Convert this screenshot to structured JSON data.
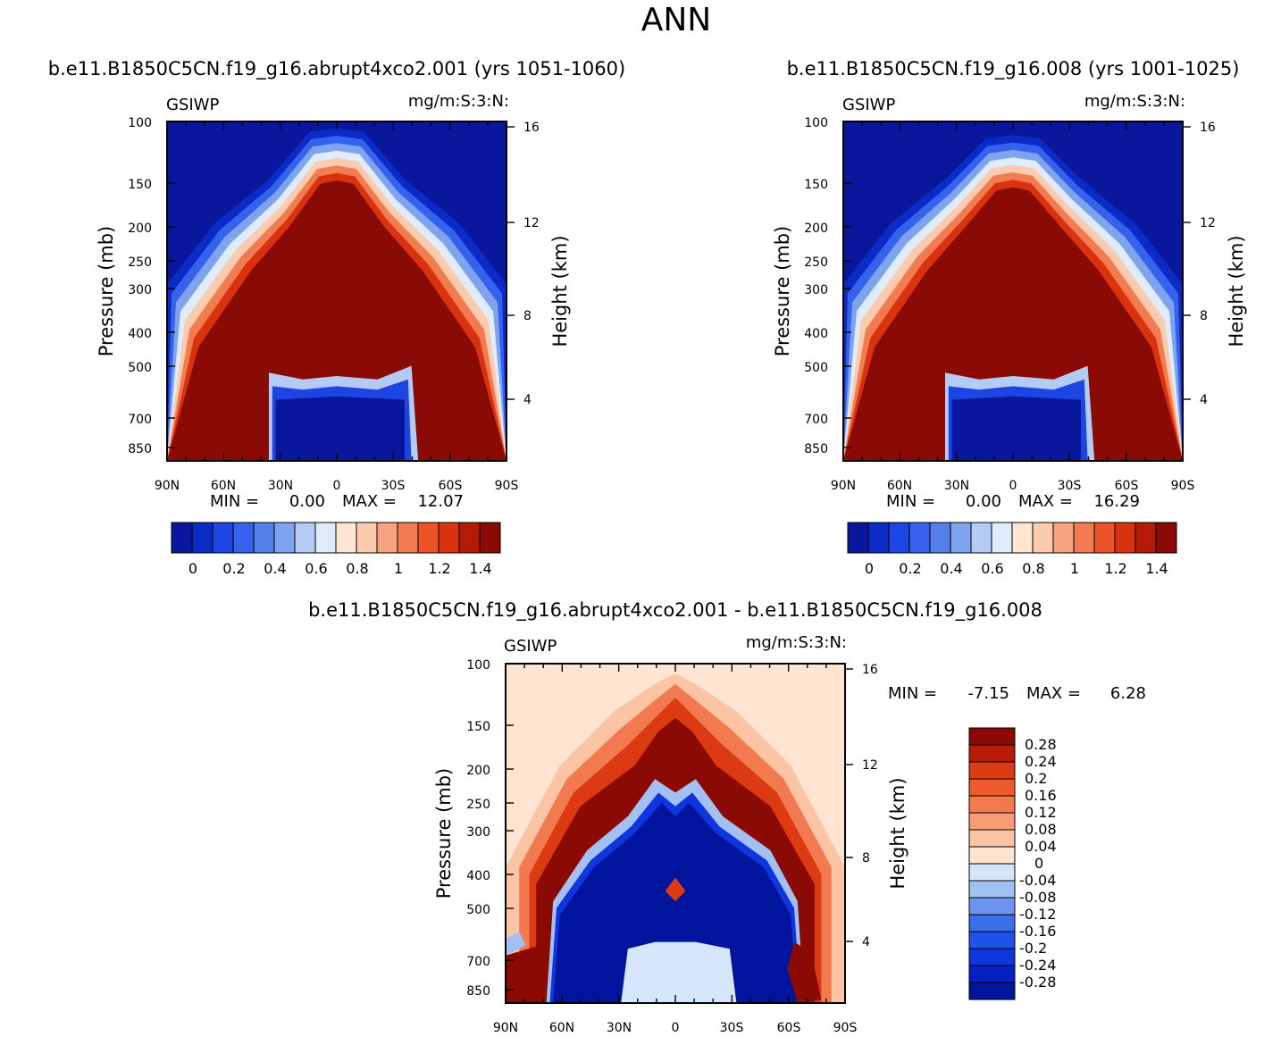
{
  "figure_title": "ANN",
  "colors": {
    "seq": [
      "#08179b",
      "#0a2bc6",
      "#1d45e3",
      "#3561ec",
      "#527fe8",
      "#7ea3ef",
      "#b4cbf5",
      "#e0ecfb",
      "#ffe6d3",
      "#fbcbad",
      "#f6a37e",
      "#f27b51",
      "#ec5326",
      "#d9320f",
      "#b31b07",
      "#8a0a05"
    ],
    "diff": [
      "#00149e",
      "#0521c2",
      "#0f36de",
      "#2051ea",
      "#3d6ee9",
      "#6d93ef",
      "#a3c0f4",
      "#d6e6fa",
      "#fee4d1",
      "#fbc4a5",
      "#f69d78",
      "#f27a4e",
      "#ed5a2b",
      "#dc3a12",
      "#b71c07",
      "#8b0a04"
    ]
  },
  "chart_data": [
    {
      "type": "contour",
      "subtitle": "b.e11.B1850C5CN.f19_g16.abrupt4xco2.001 (yrs 1051-1060)",
      "variable": "GSIWP",
      "units": "mg/m:S:3:N:",
      "ylabel": "Pressure (mb)",
      "ylabel_right": "Height (km)",
      "xticks": [
        "90N",
        "60N",
        "30N",
        "0",
        "30S",
        "60S",
        "90S"
      ],
      "yticks": [
        "100",
        "150",
        "200",
        "250",
        "300",
        "400",
        "500",
        "700",
        "850"
      ],
      "yticks_right": [
        "16",
        "12",
        "8",
        "4"
      ],
      "stats": {
        "min_label": "MIN =",
        "min": "0.00",
        "max_label": "MAX =",
        "max": "12.07"
      },
      "colorbar_labels": [
        "0",
        "0.2",
        "0.4",
        "0.6",
        "0.8",
        "1",
        "1.2",
        "1.4"
      ],
      "colorbar_levels": [
        0,
        0.1,
        0.2,
        0.3,
        0.4,
        0.5,
        0.6,
        0.7,
        0.8,
        0.9,
        1.0,
        1.1,
        1.2,
        1.3,
        1.4
      ],
      "ylim": [
        100,
        1000
      ],
      "xlim": [
        90,
        -90
      ]
    },
    {
      "type": "contour",
      "subtitle": "b.e11.B1850C5CN.f19_g16.008 (yrs 1001-1025)",
      "variable": "GSIWP",
      "units": "mg/m:S:3:N:",
      "ylabel": "Pressure (mb)",
      "ylabel_right": "Height (km)",
      "xticks": [
        "90N",
        "60N",
        "30N",
        "0",
        "30S",
        "60S",
        "90S"
      ],
      "yticks": [
        "100",
        "150",
        "200",
        "250",
        "300",
        "400",
        "500",
        "700",
        "850"
      ],
      "yticks_right": [
        "16",
        "12",
        "8",
        "4"
      ],
      "stats": {
        "min_label": "MIN =",
        "min": "0.00",
        "max_label": "MAX =",
        "max": "16.29"
      },
      "colorbar_labels": [
        "0",
        "0.2",
        "0.4",
        "0.6",
        "0.8",
        "1",
        "1.2",
        "1.4"
      ],
      "colorbar_levels": [
        0,
        0.1,
        0.2,
        0.3,
        0.4,
        0.5,
        0.6,
        0.7,
        0.8,
        0.9,
        1.0,
        1.1,
        1.2,
        1.3,
        1.4
      ],
      "ylim": [
        100,
        1000
      ],
      "xlim": [
        90,
        -90
      ]
    },
    {
      "type": "contour",
      "subtitle": "b.e11.B1850C5CN.f19_g16.abrupt4xco2.001 - b.e11.B1850C5CN.f19_g16.008",
      "variable": "GSIWP",
      "units": "mg/m:S:3:N:",
      "ylabel": "Pressure (mb)",
      "ylabel_right": "Height (km)",
      "xticks": [
        "90N",
        "60N",
        "30N",
        "0",
        "30S",
        "60S",
        "90S"
      ],
      "yticks": [
        "100",
        "150",
        "200",
        "250",
        "300",
        "400",
        "500",
        "700",
        "850"
      ],
      "yticks_right": [
        "16",
        "12",
        "8",
        "4"
      ],
      "stats": {
        "min_label": "MIN =",
        "min": "-7.15",
        "max_label": "MAX =",
        "max": "6.28"
      },
      "colorbar_labels": [
        "0.28",
        "0.24",
        "0.2",
        "0.16",
        "0.12",
        "0.08",
        "0.04",
        "0",
        "-0.04",
        "-0.08",
        "-0.12",
        "-0.16",
        "-0.2",
        "-0.24",
        "-0.28"
      ],
      "colorbar_levels": [
        -0.28,
        -0.24,
        -0.2,
        -0.16,
        -0.12,
        -0.08,
        -0.04,
        0,
        0.04,
        0.08,
        0.12,
        0.16,
        0.2,
        0.24,
        0.28
      ],
      "ylim": [
        100,
        1000
      ],
      "xlim": [
        90,
        -90
      ]
    }
  ]
}
